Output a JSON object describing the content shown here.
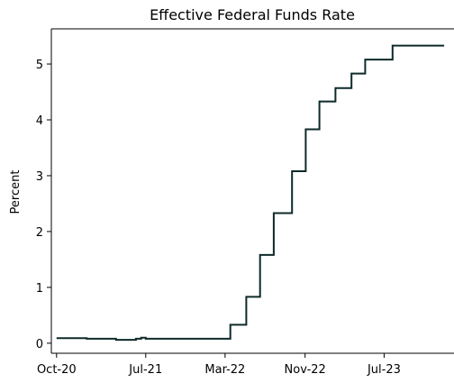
{
  "chart_data": {
    "type": "line",
    "title": "Effective Federal Funds Rate",
    "xlabel": "",
    "ylabel": "Percent",
    "grid": false,
    "line_style": "step",
    "x_ticks": [
      {
        "date": "2020-10-01",
        "label": "Oct-20"
      },
      {
        "date": "2021-07-01",
        "label": "Jul-21"
      },
      {
        "date": "2022-03-01",
        "label": "Mar-22"
      },
      {
        "date": "2022-11-01",
        "label": "Nov-22"
      },
      {
        "date": "2023-07-01",
        "label": "Jul-23"
      }
    ],
    "y_ticks": [
      0,
      1,
      2,
      3,
      4,
      5
    ],
    "xlim": [
      "2020-09-15",
      "2024-01-31"
    ],
    "ylim": [
      -0.18,
      5.63
    ],
    "series": [
      {
        "color": "#0e2a2a",
        "points": [
          {
            "date": "2020-10-01",
            "value": 0.09
          },
          {
            "date": "2021-01-01",
            "value": 0.08
          },
          {
            "date": "2021-04-01",
            "value": 0.06
          },
          {
            "date": "2021-06-01",
            "value": 0.08
          },
          {
            "date": "2021-06-17",
            "value": 0.1
          },
          {
            "date": "2021-07-01",
            "value": 0.08
          },
          {
            "date": "2022-03-17",
            "value": 0.33
          },
          {
            "date": "2022-05-05",
            "value": 0.83
          },
          {
            "date": "2022-06-16",
            "value": 1.58
          },
          {
            "date": "2022-07-28",
            "value": 2.33
          },
          {
            "date": "2022-09-22",
            "value": 3.08
          },
          {
            "date": "2022-11-03",
            "value": 3.83
          },
          {
            "date": "2022-12-15",
            "value": 4.33
          },
          {
            "date": "2023-02-02",
            "value": 4.57
          },
          {
            "date": "2023-03-23",
            "value": 4.83
          },
          {
            "date": "2023-05-04",
            "value": 5.08
          },
          {
            "date": "2023-07-27",
            "value": 5.33
          },
          {
            "date": "2024-01-01",
            "value": 5.33
          }
        ]
      }
    ]
  }
}
